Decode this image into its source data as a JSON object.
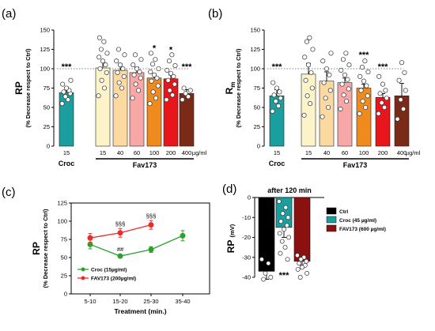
{
  "chart_data": [
    {
      "id": "a",
      "panel_label": "(a)",
      "type": "bar",
      "ylabel": "RP",
      "ylabel_sub": "(% Decrease respect to Ctrl)",
      "ylim": [
        0,
        150
      ],
      "yticks": [
        "0",
        "25",
        "50",
        "75",
        "100",
        "125",
        "150"
      ],
      "reference_line": 100,
      "unit_label": "µg/ml",
      "group_labels": [
        "Croc",
        "Fav173"
      ],
      "bars": [
        {
          "label": "15",
          "value": 69,
          "err": 7,
          "color": "#1a9e9e",
          "sig": "***",
          "pts": [
            55,
            60,
            64,
            68,
            70,
            72,
            75,
            80,
            85
          ]
        },
        {
          "label": "15",
          "value": 101,
          "err": 9,
          "color": "#fdf3c8",
          "sig": "",
          "pts": [
            65,
            75,
            85,
            95,
            100,
            105,
            110,
            115,
            120,
            125,
            135,
            140
          ]
        },
        {
          "label": "40",
          "value": 98,
          "err": 8,
          "color": "#fbd9a0",
          "sig": "",
          "pts": [
            65,
            75,
            82,
            90,
            95,
            100,
            105,
            110,
            118,
            125
          ]
        },
        {
          "label": "60",
          "value": 95,
          "err": 7,
          "color": "#f7a8a6",
          "sig": "",
          "pts": [
            62,
            72,
            80,
            88,
            92,
            96,
            100,
            105,
            112,
            118
          ]
        },
        {
          "label": "100",
          "value": 88,
          "err": 5,
          "color": "#ef8a1e",
          "sig": "*",
          "pts": [
            55,
            62,
            70,
            78,
            84,
            88,
            92,
            96,
            100,
            106,
            112,
            120
          ]
        },
        {
          "label": "200",
          "value": 87,
          "err": 5,
          "color": "#e8161b",
          "sig": "*",
          "pts": [
            60,
            66,
            72,
            80,
            85,
            90,
            94,
            98,
            104,
            110,
            118
          ]
        },
        {
          "label": "400",
          "value": 68,
          "err": 5,
          "color": "#7b2a18",
          "sig": "***",
          "pts": [
            60,
            64,
            68,
            72,
            75
          ]
        }
      ]
    },
    {
      "id": "b",
      "panel_label": "(b)",
      "type": "bar",
      "ylabel": "R",
      "ylabel_subscript": "m",
      "ylabel_sub": "(% Decrease respect to Ctrl)",
      "ylim": [
        0,
        150
      ],
      "yticks": [
        "0",
        "25",
        "50",
        "75",
        "100",
        "125",
        "150"
      ],
      "reference_line": 100,
      "unit_label": "µg/ml",
      "group_labels": [
        "Croc",
        "Fav173"
      ],
      "bars": [
        {
          "label": "15",
          "value": 65,
          "err": 8,
          "color": "#1a9e9e",
          "sig": "***",
          "pts": [
            45,
            52,
            58,
            62,
            66,
            70,
            75,
            82
          ]
        },
        {
          "label": "15",
          "value": 93,
          "err": 14,
          "color": "#fdf3c8",
          "sig": "",
          "pts": [
            40,
            55,
            65,
            75,
            85,
            95,
            105,
            115,
            125,
            135,
            140
          ]
        },
        {
          "label": "40",
          "value": 84,
          "err": 12,
          "color": "#fbd9a0",
          "sig": "",
          "pts": [
            38,
            50,
            62,
            72,
            82,
            92,
            100,
            110,
            120
          ]
        },
        {
          "label": "60",
          "value": 82,
          "err": 6,
          "color": "#f7a8a6",
          "sig": "",
          "pts": [
            48,
            58,
            66,
            74,
            80,
            86,
            92,
            98,
            105,
            112,
            120
          ]
        },
        {
          "label": "100",
          "value": 75,
          "err": 5,
          "color": "#ef8a1e",
          "sig": "***",
          "pts": [
            42,
            50,
            58,
            65,
            72,
            78,
            84,
            90,
            96,
            102,
            110
          ]
        },
        {
          "label": "200",
          "value": 63,
          "err": 5,
          "color": "#e8161b",
          "sig": "***",
          "pts": [
            42,
            50,
            56,
            62,
            68,
            72,
            80,
            90
          ]
        },
        {
          "label": "400",
          "value": 65,
          "err": 16,
          "color": "#7b2a18",
          "sig": "",
          "pts": [
            35,
            48,
            60,
            72,
            85,
            95,
            108
          ]
        }
      ]
    },
    {
      "id": "c",
      "panel_label": "(c)",
      "type": "line",
      "ylabel": "RP",
      "ylabel_sub": "(% Decrease respect to Ctrl)",
      "xlabel": "Treatment (min.)",
      "categories": [
        "5-10",
        "15-20",
        "25-30",
        "35-40"
      ],
      "ylim": [
        0,
        125
      ],
      "yticks": [
        "0",
        "25",
        "50",
        "75",
        "100",
        "125"
      ],
      "series": [
        {
          "name": "Croc  (15µg/ml)",
          "color": "#2ca02c",
          "values": [
            68,
            52,
            61,
            80
          ],
          "err": [
            6,
            2,
            4,
            7
          ],
          "marks": [
            "",
            "##",
            "",
            ""
          ]
        },
        {
          "name": "FAV173 (200µg/ml)",
          "color": "#ee2a2a",
          "values": [
            77,
            84,
            95,
            null
          ],
          "err": [
            6,
            6,
            6,
            null
          ],
          "marks": [
            "",
            "§§§",
            "§§§",
            ""
          ]
        }
      ],
      "legend_position": "bottom-left"
    },
    {
      "id": "d",
      "panel_label": "(d)",
      "type": "bar",
      "title": "after 120 min",
      "ylabel": "RP",
      "ylabel_unit": "(mV)",
      "ylim": [
        -40,
        0
      ],
      "yticks": [
        "0",
        "-10",
        "-20",
        "-30",
        "-40"
      ],
      "bars": [
        {
          "name": "Ctrl",
          "value": -37,
          "err": 4,
          "color": "#000000",
          "sig": "",
          "pts": [
            -31,
            -33,
            -38,
            -40,
            -41
          ]
        },
        {
          "name": "Croc (45 µg/ml)",
          "value": -15,
          "err": 5,
          "color": "#1a9e9e",
          "sig": "***",
          "pts": [
            -2,
            -5,
            -8,
            -10,
            -12,
            -14,
            -16,
            -18,
            -20,
            -22,
            -25,
            -28,
            -31
          ]
        },
        {
          "name": "FAV173 (600 µg/ml)",
          "value": -32,
          "err": 2,
          "color": "#8b1010",
          "sig": "",
          "pts": [
            -29,
            -30,
            -31,
            -32,
            -33,
            -34,
            -35,
            -36,
            -38,
            -40
          ]
        }
      ],
      "legend_position": "right"
    }
  ]
}
